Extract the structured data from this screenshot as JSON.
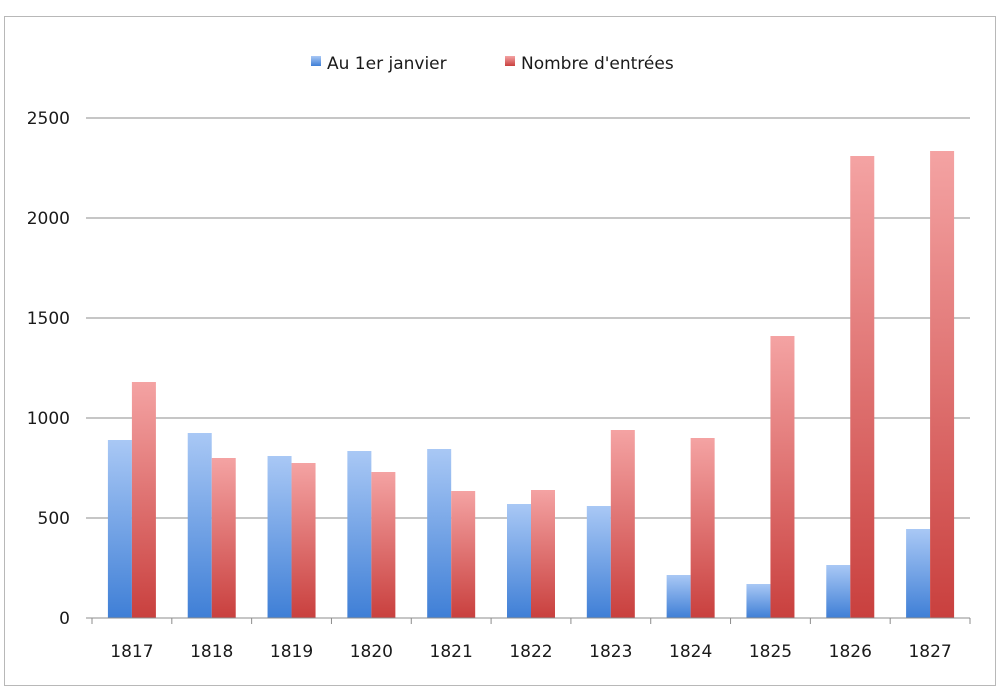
{
  "chart_data": {
    "type": "bar",
    "categories": [
      "1817",
      "1818",
      "1819",
      "1820",
      "1821",
      "1822",
      "1823",
      "1824",
      "1825",
      "1826",
      "1827"
    ],
    "series": [
      {
        "name": "Au 1er janvier",
        "color": "#4f81bd",
        "values": [
          890,
          925,
          810,
          835,
          845,
          570,
          560,
          215,
          170,
          265,
          445
        ]
      },
      {
        "name": "Nombre d'entrées",
        "color": "#c0504d",
        "values": [
          1180,
          800,
          775,
          730,
          635,
          640,
          940,
          900,
          1410,
          2310,
          2335
        ]
      }
    ],
    "title": "",
    "xlabel": "",
    "ylabel": "",
    "ylim": [
      0,
      2500
    ],
    "yticks": [
      0,
      500,
      1000,
      1500,
      2000,
      2500
    ],
    "grid": true,
    "legend_position": "top"
  }
}
